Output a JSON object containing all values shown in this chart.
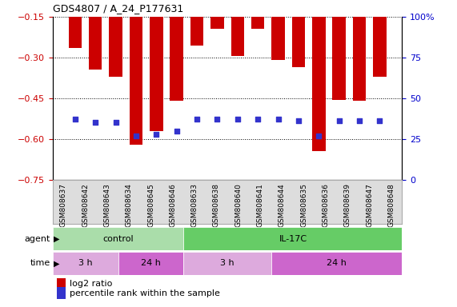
{
  "title": "GDS4807 / A_24_P177631",
  "samples": [
    "GSM808637",
    "GSM808642",
    "GSM808643",
    "GSM808634",
    "GSM808645",
    "GSM808646",
    "GSM808633",
    "GSM808638",
    "GSM808640",
    "GSM808641",
    "GSM808644",
    "GSM808635",
    "GSM808636",
    "GSM808639",
    "GSM808647",
    "GSM808648"
  ],
  "log2_ratio": [
    -0.265,
    -0.345,
    -0.37,
    -0.62,
    -0.57,
    -0.46,
    -0.255,
    -0.195,
    -0.295,
    -0.195,
    -0.31,
    -0.335,
    -0.645,
    -0.455,
    -0.46,
    -0.37
  ],
  "percentile": [
    37,
    35,
    35,
    27,
    28,
    30,
    37,
    37,
    37,
    37,
    37,
    36,
    27,
    36,
    36,
    36
  ],
  "ylim_left": [
    -0.75,
    -0.15
  ],
  "ylim_right": [
    0,
    100
  ],
  "yticks_left": [
    -0.75,
    -0.6,
    -0.45,
    -0.3,
    -0.15
  ],
  "yticks_right": [
    0,
    25,
    50,
    75,
    100
  ],
  "bar_color": "#cc0000",
  "dot_color": "#3333cc",
  "bg_color": "#ffffff",
  "agent_groups": [
    {
      "label": "control",
      "start": 0,
      "end": 6,
      "color": "#aaddaa"
    },
    {
      "label": "IL-17C",
      "start": 6,
      "end": 16,
      "color": "#66cc66"
    }
  ],
  "time_groups": [
    {
      "label": "3 h",
      "start": 0,
      "end": 3,
      "color": "#ddaadd"
    },
    {
      "label": "24 h",
      "start": 3,
      "end": 6,
      "color": "#cc66cc"
    },
    {
      "label": "3 h",
      "start": 6,
      "end": 10,
      "color": "#ddaadd"
    },
    {
      "label": "24 h",
      "start": 10,
      "end": 16,
      "color": "#cc66cc"
    }
  ],
  "legend_red_label": "log2 ratio",
  "legend_blue_label": "percentile rank within the sample"
}
